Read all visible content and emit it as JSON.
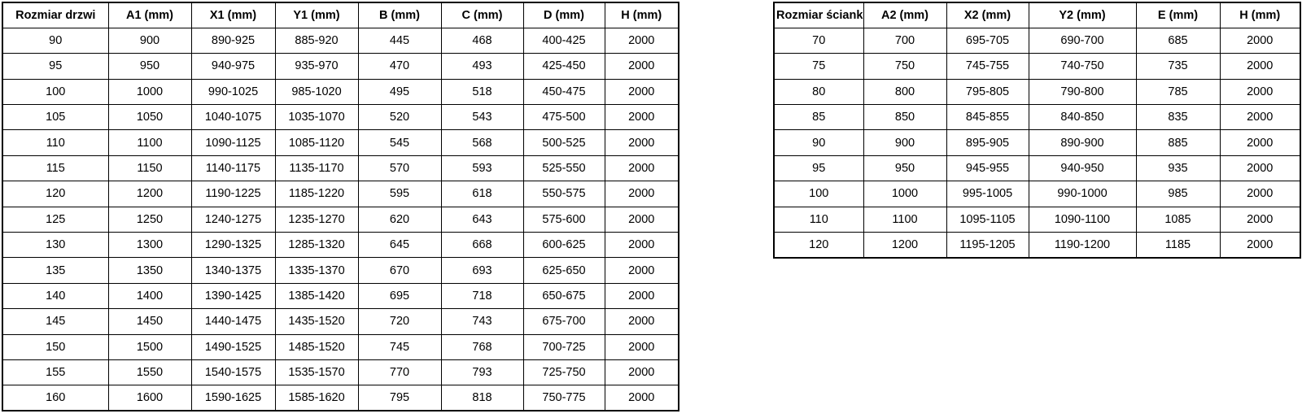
{
  "colors": {
    "background": "#ffffff",
    "border": "#000000",
    "text": "#000000"
  },
  "tables": [
    {
      "name": "door-dimensions",
      "headers": [
        "Rozmiar drzwi",
        "A1 (mm)",
        "X1 (mm)",
        "Y1 (mm)",
        "B (mm)",
        "C (mm)",
        "D (mm)",
        "H (mm)"
      ],
      "rows": [
        [
          "90",
          "900",
          "890-925",
          "885-920",
          "445",
          "468",
          "400-425",
          "2000"
        ],
        [
          "95",
          "950",
          "940-975",
          "935-970",
          "470",
          "493",
          "425-450",
          "2000"
        ],
        [
          "100",
          "1000",
          "990-1025",
          "985-1020",
          "495",
          "518",
          "450-475",
          "2000"
        ],
        [
          "105",
          "1050",
          "1040-1075",
          "1035-1070",
          "520",
          "543",
          "475-500",
          "2000"
        ],
        [
          "110",
          "1100",
          "1090-1125",
          "1085-1120",
          "545",
          "568",
          "500-525",
          "2000"
        ],
        [
          "115",
          "1150",
          "1140-1175",
          "1135-1170",
          "570",
          "593",
          "525-550",
          "2000"
        ],
        [
          "120",
          "1200",
          "1190-1225",
          "1185-1220",
          "595",
          "618",
          "550-575",
          "2000"
        ],
        [
          "125",
          "1250",
          "1240-1275",
          "1235-1270",
          "620",
          "643",
          "575-600",
          "2000"
        ],
        [
          "130",
          "1300",
          "1290-1325",
          "1285-1320",
          "645",
          "668",
          "600-625",
          "2000"
        ],
        [
          "135",
          "1350",
          "1340-1375",
          "1335-1370",
          "670",
          "693",
          "625-650",
          "2000"
        ],
        [
          "140",
          "1400",
          "1390-1425",
          "1385-1420",
          "695",
          "718",
          "650-675",
          "2000"
        ],
        [
          "145",
          "1450",
          "1440-1475",
          "1435-1520",
          "720",
          "743",
          "675-700",
          "2000"
        ],
        [
          "150",
          "1500",
          "1490-1525",
          "1485-1520",
          "745",
          "768",
          "700-725",
          "2000"
        ],
        [
          "155",
          "1550",
          "1540-1575",
          "1535-1570",
          "770",
          "793",
          "725-750",
          "2000"
        ],
        [
          "160",
          "1600",
          "1590-1625",
          "1585-1620",
          "795",
          "818",
          "750-775",
          "2000"
        ]
      ]
    },
    {
      "name": "wall-dimensions",
      "headers": [
        "Rozmiar ścianki",
        "A2 (mm)",
        "X2 (mm)",
        "Y2 (mm)",
        "E (mm)",
        "H (mm)"
      ],
      "rows": [
        [
          "70",
          "700",
          "695-705",
          "690-700",
          "685",
          "2000"
        ],
        [
          "75",
          "750",
          "745-755",
          "740-750",
          "735",
          "2000"
        ],
        [
          "80",
          "800",
          "795-805",
          "790-800",
          "785",
          "2000"
        ],
        [
          "85",
          "850",
          "845-855",
          "840-850",
          "835",
          "2000"
        ],
        [
          "90",
          "900",
          "895-905",
          "890-900",
          "885",
          "2000"
        ],
        [
          "95",
          "950",
          "945-955",
          "940-950",
          "935",
          "2000"
        ],
        [
          "100",
          "1000",
          "995-1005",
          "990-1000",
          "985",
          "2000"
        ],
        [
          "110",
          "1100",
          "1095-1105",
          "1090-1100",
          "1085",
          "2000"
        ],
        [
          "120",
          "1200",
          "1195-1205",
          "1190-1200",
          "1185",
          "2000"
        ]
      ]
    }
  ]
}
